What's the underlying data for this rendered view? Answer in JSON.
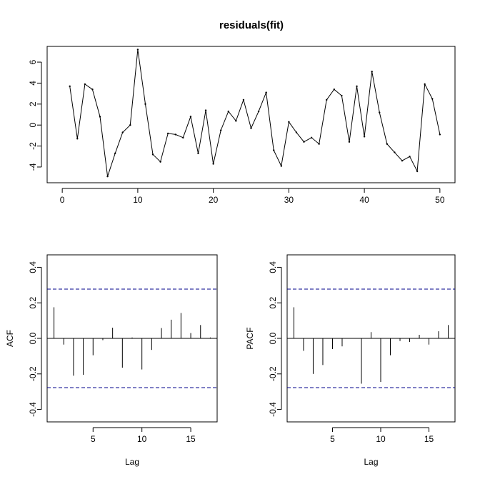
{
  "chart_data": [
    {
      "type": "line",
      "title": "residuals(fit)",
      "xlabel": "",
      "ylabel": "",
      "xlim": [
        -2,
        52
      ],
      "ylim": [
        -5.5,
        7.5
      ],
      "x_ticks": [
        0,
        10,
        20,
        30,
        40,
        50
      ],
      "y_ticks": [
        -4,
        -2,
        0,
        2,
        4,
        6
      ],
      "grid": false,
      "series": [
        {
          "x": [
            1,
            2,
            3,
            4,
            5,
            6,
            7,
            8,
            9,
            10,
            11,
            12,
            13,
            14,
            15,
            16,
            17,
            18,
            19,
            20,
            21,
            22,
            23,
            24,
            25,
            26,
            27,
            28,
            29,
            30,
            31,
            32,
            33,
            34,
            35,
            36,
            37,
            38,
            39,
            40,
            41,
            42,
            43,
            44,
            45,
            46,
            47,
            48,
            49,
            50
          ],
          "values": [
            3.7,
            -1.3,
            3.9,
            3.4,
            0.8,
            -4.9,
            -2.7,
            -0.7,
            0.0,
            7.2,
            2.0,
            -2.8,
            -3.5,
            -0.8,
            -0.9,
            -1.2,
            0.8,
            -2.7,
            1.4,
            -3.7,
            -0.5,
            1.3,
            0.4,
            2.4,
            -0.3,
            1.3,
            3.1,
            -2.4,
            -3.9,
            0.3,
            -0.7,
            -1.6,
            -1.2,
            -1.8,
            2.4,
            3.4,
            2.8,
            -1.6,
            3.7,
            -1.1,
            5.1,
            1.2,
            -1.8,
            -2.6,
            -3.4,
            -3.0,
            -4.4,
            3.9,
            2.5,
            -0.9
          ]
        }
      ]
    },
    {
      "type": "bar",
      "title": "",
      "xlabel": "Lag",
      "ylabel": "ACF",
      "xlim": [
        0.3,
        17.7
      ],
      "ylim": [
        -0.47,
        0.47
      ],
      "x_ticks": [
        5,
        10,
        15
      ],
      "y_ticks": [
        -0.4,
        -0.2,
        0.0,
        0.2,
        0.4
      ],
      "confidence_band": 0.277,
      "grid": false,
      "categories": [
        1,
        2,
        3,
        4,
        5,
        6,
        7,
        8,
        9,
        10,
        11,
        12,
        13,
        14,
        15,
        16,
        17
      ],
      "values": [
        0.175,
        -0.035,
        -0.21,
        -0.205,
        -0.095,
        -0.01,
        0.06,
        -0.165,
        0.005,
        -0.175,
        -0.065,
        0.058,
        0.105,
        0.143,
        0.03,
        0.075,
        0.005
      ]
    },
    {
      "type": "bar",
      "title": "",
      "xlabel": "Lag",
      "ylabel": "PACF",
      "xlim": [
        0.3,
        17.7
      ],
      "ylim": [
        -0.47,
        0.47
      ],
      "x_ticks": [
        5,
        10,
        15
      ],
      "y_ticks": [
        -0.4,
        -0.2,
        0.0,
        0.2,
        0.4
      ],
      "confidence_band": 0.277,
      "grid": false,
      "categories": [
        1,
        2,
        3,
        4,
        5,
        6,
        7,
        8,
        9,
        10,
        11,
        12,
        13,
        14,
        15,
        16,
        17
      ],
      "values": [
        0.175,
        -0.07,
        -0.2,
        -0.15,
        -0.06,
        -0.045,
        0.0,
        -0.255,
        0.035,
        -0.245,
        -0.095,
        -0.015,
        -0.02,
        0.02,
        -0.035,
        0.04,
        0.075
      ]
    }
  ],
  "style": {
    "line_color": "#000000",
    "band_color": "#00008b"
  }
}
